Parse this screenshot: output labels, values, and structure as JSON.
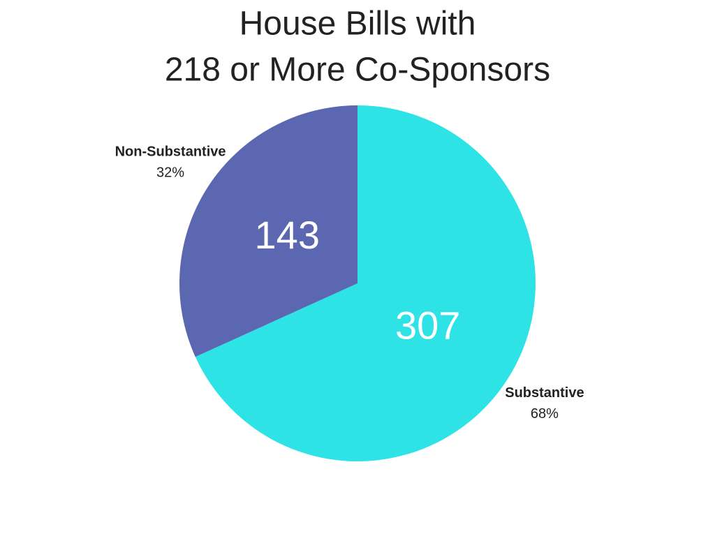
{
  "chart_data": {
    "type": "pie",
    "title": [
      "House Bills with",
      "218 or More Co-Sponsors"
    ],
    "categories": [
      "Substantive",
      "Non-Substantive"
    ],
    "values": [
      307,
      143
    ],
    "percent_labels": [
      "68%",
      "32%"
    ],
    "colors": [
      "#2ee3e6",
      "#5b67b0"
    ]
  }
}
